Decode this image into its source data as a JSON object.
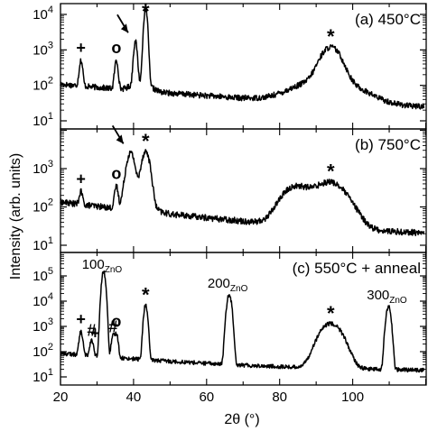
{
  "figure": {
    "ylabel": "Intensity (arb. units)",
    "xlabel": "2θ (°)"
  },
  "chart_data": [
    {
      "type": "line",
      "panel_label": "(a) 450°C",
      "x_range": [
        20,
        120
      ],
      "y_scale": "log",
      "y_range": [
        10,
        15000
      ],
      "y_ticks": [
        "10^1",
        "10^2",
        "10^3",
        "10^4"
      ],
      "peaks": [
        {
          "x": 20,
          "y": 80
        },
        {
          "x": 23,
          "y": 190
        },
        {
          "x": 25.6,
          "y": 500
        },
        {
          "x": 35.3,
          "y": 500
        },
        {
          "x": 40.5,
          "y": 1700
        },
        {
          "x": 43.3,
          "y": 14000
        },
        {
          "x": 94,
          "y": 1200
        }
      ],
      "annotations": [
        {
          "symbol": "+",
          "x": 25.6
        },
        {
          "symbol": "o",
          "x": 35.3
        },
        {
          "symbol": "arrow",
          "x": 40.5
        },
        {
          "symbol": "*",
          "x": 43.3
        },
        {
          "symbol": "*",
          "x": 94
        }
      ]
    },
    {
      "type": "line",
      "panel_label": "(b) 750°C",
      "x_range": [
        20,
        120
      ],
      "y_scale": "log",
      "y_range": [
        10,
        15000
      ],
      "y_ticks": [
        "10^1",
        "10^2",
        "10^3"
      ],
      "peaks": [
        {
          "x": 21.5,
          "y": 250
        },
        {
          "x": 25.6,
          "y": 250
        },
        {
          "x": 35.3,
          "y": 350
        },
        {
          "x": 39.2,
          "y": 2600
        },
        {
          "x": 43.3,
          "y": 2800
        },
        {
          "x": 84,
          "y": 350
        },
        {
          "x": 94,
          "y": 450
        }
      ],
      "annotations": [
        {
          "symbol": "+",
          "x": 25.6
        },
        {
          "symbol": "o",
          "x": 35.3
        },
        {
          "symbol": "arrow",
          "x": 39.2
        },
        {
          "symbol": "*",
          "x": 43.3
        },
        {
          "symbol": "*",
          "x": 94
        }
      ]
    },
    {
      "type": "line",
      "panel_label": "(c) 550°C + anneal",
      "x_range": [
        20,
        120
      ],
      "y_scale": "log",
      "y_range": [
        10,
        1000000
      ],
      "y_ticks": [
        "10^1",
        "10^2",
        "10^3",
        "10^4",
        "10^5"
      ],
      "x_ticks": [
        "20",
        "40",
        "60",
        "80",
        "100"
      ],
      "peaks": [
        {
          "x": 25.6,
          "y": 600
        },
        {
          "x": 28.5,
          "y": 300
        },
        {
          "x": 31.8,
          "y": 150000
        },
        {
          "x": 34.4,
          "y": 400
        },
        {
          "x": 35.3,
          "y": 500
        },
        {
          "x": 43.3,
          "y": 7000
        },
        {
          "x": 66.2,
          "y": 18000
        },
        {
          "x": 94,
          "y": 1300
        },
        {
          "x": 109.8,
          "y": 6000
        }
      ],
      "annotations": [
        {
          "symbol": "+",
          "x": 25.6
        },
        {
          "symbol": "+",
          "x": 29.5
        },
        {
          "symbol": "#",
          "x": 28.5
        },
        {
          "symbol": "#",
          "x": 34.4
        },
        {
          "symbol": "o",
          "x": 35.3
        },
        {
          "symbol": "*",
          "x": 43.3
        },
        {
          "symbol": "*",
          "x": 94
        }
      ],
      "peak_labels": [
        {
          "main": "100",
          "sub": "ZnO",
          "x": 31.8
        },
        {
          "main": "200",
          "sub": "ZnO",
          "x": 66.2
        },
        {
          "main": "300",
          "sub": "ZnO",
          "x": 109.8
        }
      ]
    }
  ]
}
